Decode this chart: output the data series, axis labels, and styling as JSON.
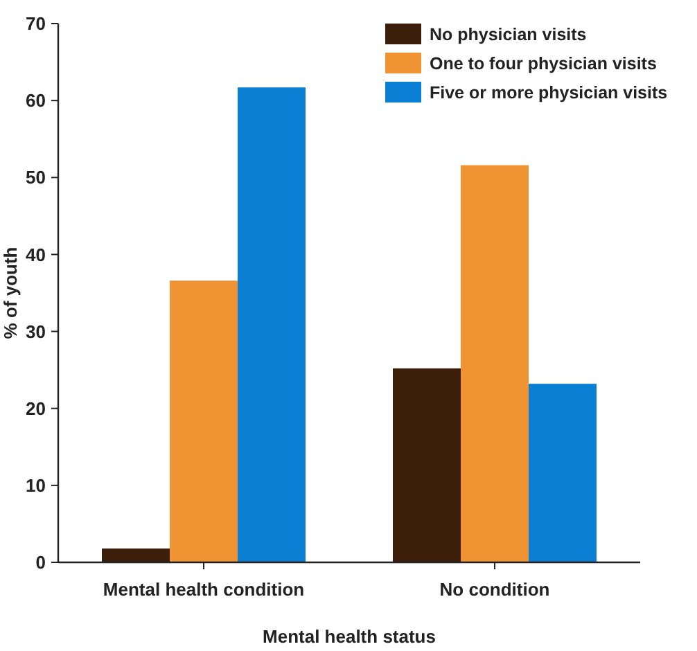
{
  "chart_data": {
    "type": "bar",
    "xlabel": "Mental health status",
    "ylabel": "% of youth",
    "categories": [
      "Mental health condition",
      "No condition"
    ],
    "series": [
      {
        "name": "No physician visits",
        "color": "#3b1f0a",
        "values": [
          1.8,
          25.2
        ]
      },
      {
        "name": "One to four physician visits",
        "color": "#f09433",
        "values": [
          36.6,
          51.6
        ]
      },
      {
        "name": "Five or more physician visits",
        "color": "#0a7fd4",
        "values": [
          61.7,
          23.2
        ]
      }
    ],
    "ylim": [
      0,
      70
    ],
    "yticks": [
      0,
      10,
      20,
      30,
      40,
      50,
      60,
      70
    ],
    "legend": "top right",
    "grid": false
  }
}
